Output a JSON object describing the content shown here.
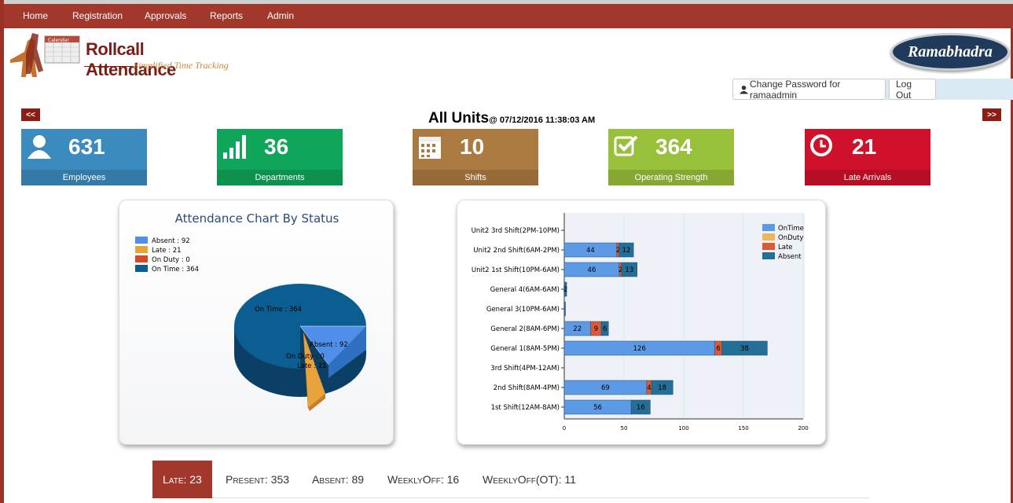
{
  "nav": [
    "Home",
    "Registration",
    "Approvals",
    "Reports",
    "Admin"
  ],
  "logo": {
    "title": "Rollcall Attendance",
    "subtitle": "Simplified Time Tracking",
    "icon_text": "Calendar"
  },
  "brand": "Ramabhadra",
  "user": {
    "change_password": "Change Password for ramaadmin",
    "logout": "Log Out"
  },
  "nav_prev": "<<",
  "nav_next": ">>",
  "title": "All Units",
  "timestamp": "@ 07/12/2016 11:38:03 AM",
  "tiles": [
    {
      "value": "631",
      "label": "Employees",
      "color": "#3b8bbf",
      "icon": "person-icon"
    },
    {
      "value": "36",
      "label": "Departments",
      "color": "#0fa55a",
      "icon": "signal-bars-icon"
    },
    {
      "value": "10",
      "label": "Shifts",
      "color": "#ab7a40",
      "icon": "calendar-icon"
    },
    {
      "value": "364",
      "label": "Operating Strength",
      "color": "#99c03b",
      "icon": "checkbox-icon"
    },
    {
      "value": "21",
      "label": "Late Arrivals",
      "color": "#d0112b",
      "icon": "clock-icon"
    }
  ],
  "pie": {
    "title": "Attendance Chart By Status",
    "legend": [
      "Absent : 92",
      "Late : 21",
      "On Duty : 0",
      "On Time : 364"
    ],
    "labels": {
      "on_time": "On Time : 364",
      "absent": "Absent : 92",
      "on_duty": "On Duty : 0",
      "late": "Late : 21"
    }
  },
  "chart_data": [
    {
      "type": "pie",
      "title": "Attendance Chart By Status",
      "categories": [
        "Absent",
        "Late",
        "On Duty",
        "On Time"
      ],
      "values": [
        92,
        21,
        0,
        364
      ],
      "colors": [
        "#4f8fea",
        "#e8a33d",
        "#d54b2a",
        "#0a5e92"
      ]
    },
    {
      "type": "bar",
      "orientation": "horizontal",
      "stacked": true,
      "categories": [
        "Unit2 3rd Shift(2PM-10PM)",
        "Unit2 2nd Shift(6AM-2PM)",
        "Unit2 1st Shift(10PM-6AM)",
        "General 4(6AM-6AM)",
        "General 3(10PM-6AM)",
        "General 2(8AM-6PM)",
        "General 1(8AM-5PM)",
        "3rd Shift(4PM-12AM)",
        "2nd Shift(8AM-4PM)",
        "1st Shift(12AM-8AM)"
      ],
      "series": [
        {
          "name": "OnTime",
          "color": "#5d9ae6",
          "values": [
            0,
            44,
            46,
            0,
            0,
            22,
            126,
            0,
            69,
            56
          ]
        },
        {
          "name": "OnDuty",
          "color": "#f0b65a",
          "values": [
            0,
            0,
            0,
            0,
            0,
            0,
            0,
            0,
            0,
            0
          ]
        },
        {
          "name": "Late",
          "color": "#dc5a35",
          "values": [
            0,
            2,
            2,
            0,
            0,
            9,
            6,
            0,
            4,
            0
          ]
        },
        {
          "name": "Absent",
          "color": "#236f97",
          "values": [
            0,
            12,
            13,
            2,
            1,
            6,
            38,
            0,
            18,
            16
          ]
        }
      ],
      "xticks": [
        "0",
        "50",
        "100",
        "150",
        "200"
      ],
      "xlim": [
        0,
        200
      ],
      "legend": "top-right"
    }
  ],
  "status_tabs": [
    {
      "label": "Late: 23",
      "active": true
    },
    {
      "label": "Present: 353"
    },
    {
      "label": "Absent: 89"
    },
    {
      "label": "WeeklyOff: 16"
    },
    {
      "label": "WeeklyOff(OT): 11"
    }
  ]
}
